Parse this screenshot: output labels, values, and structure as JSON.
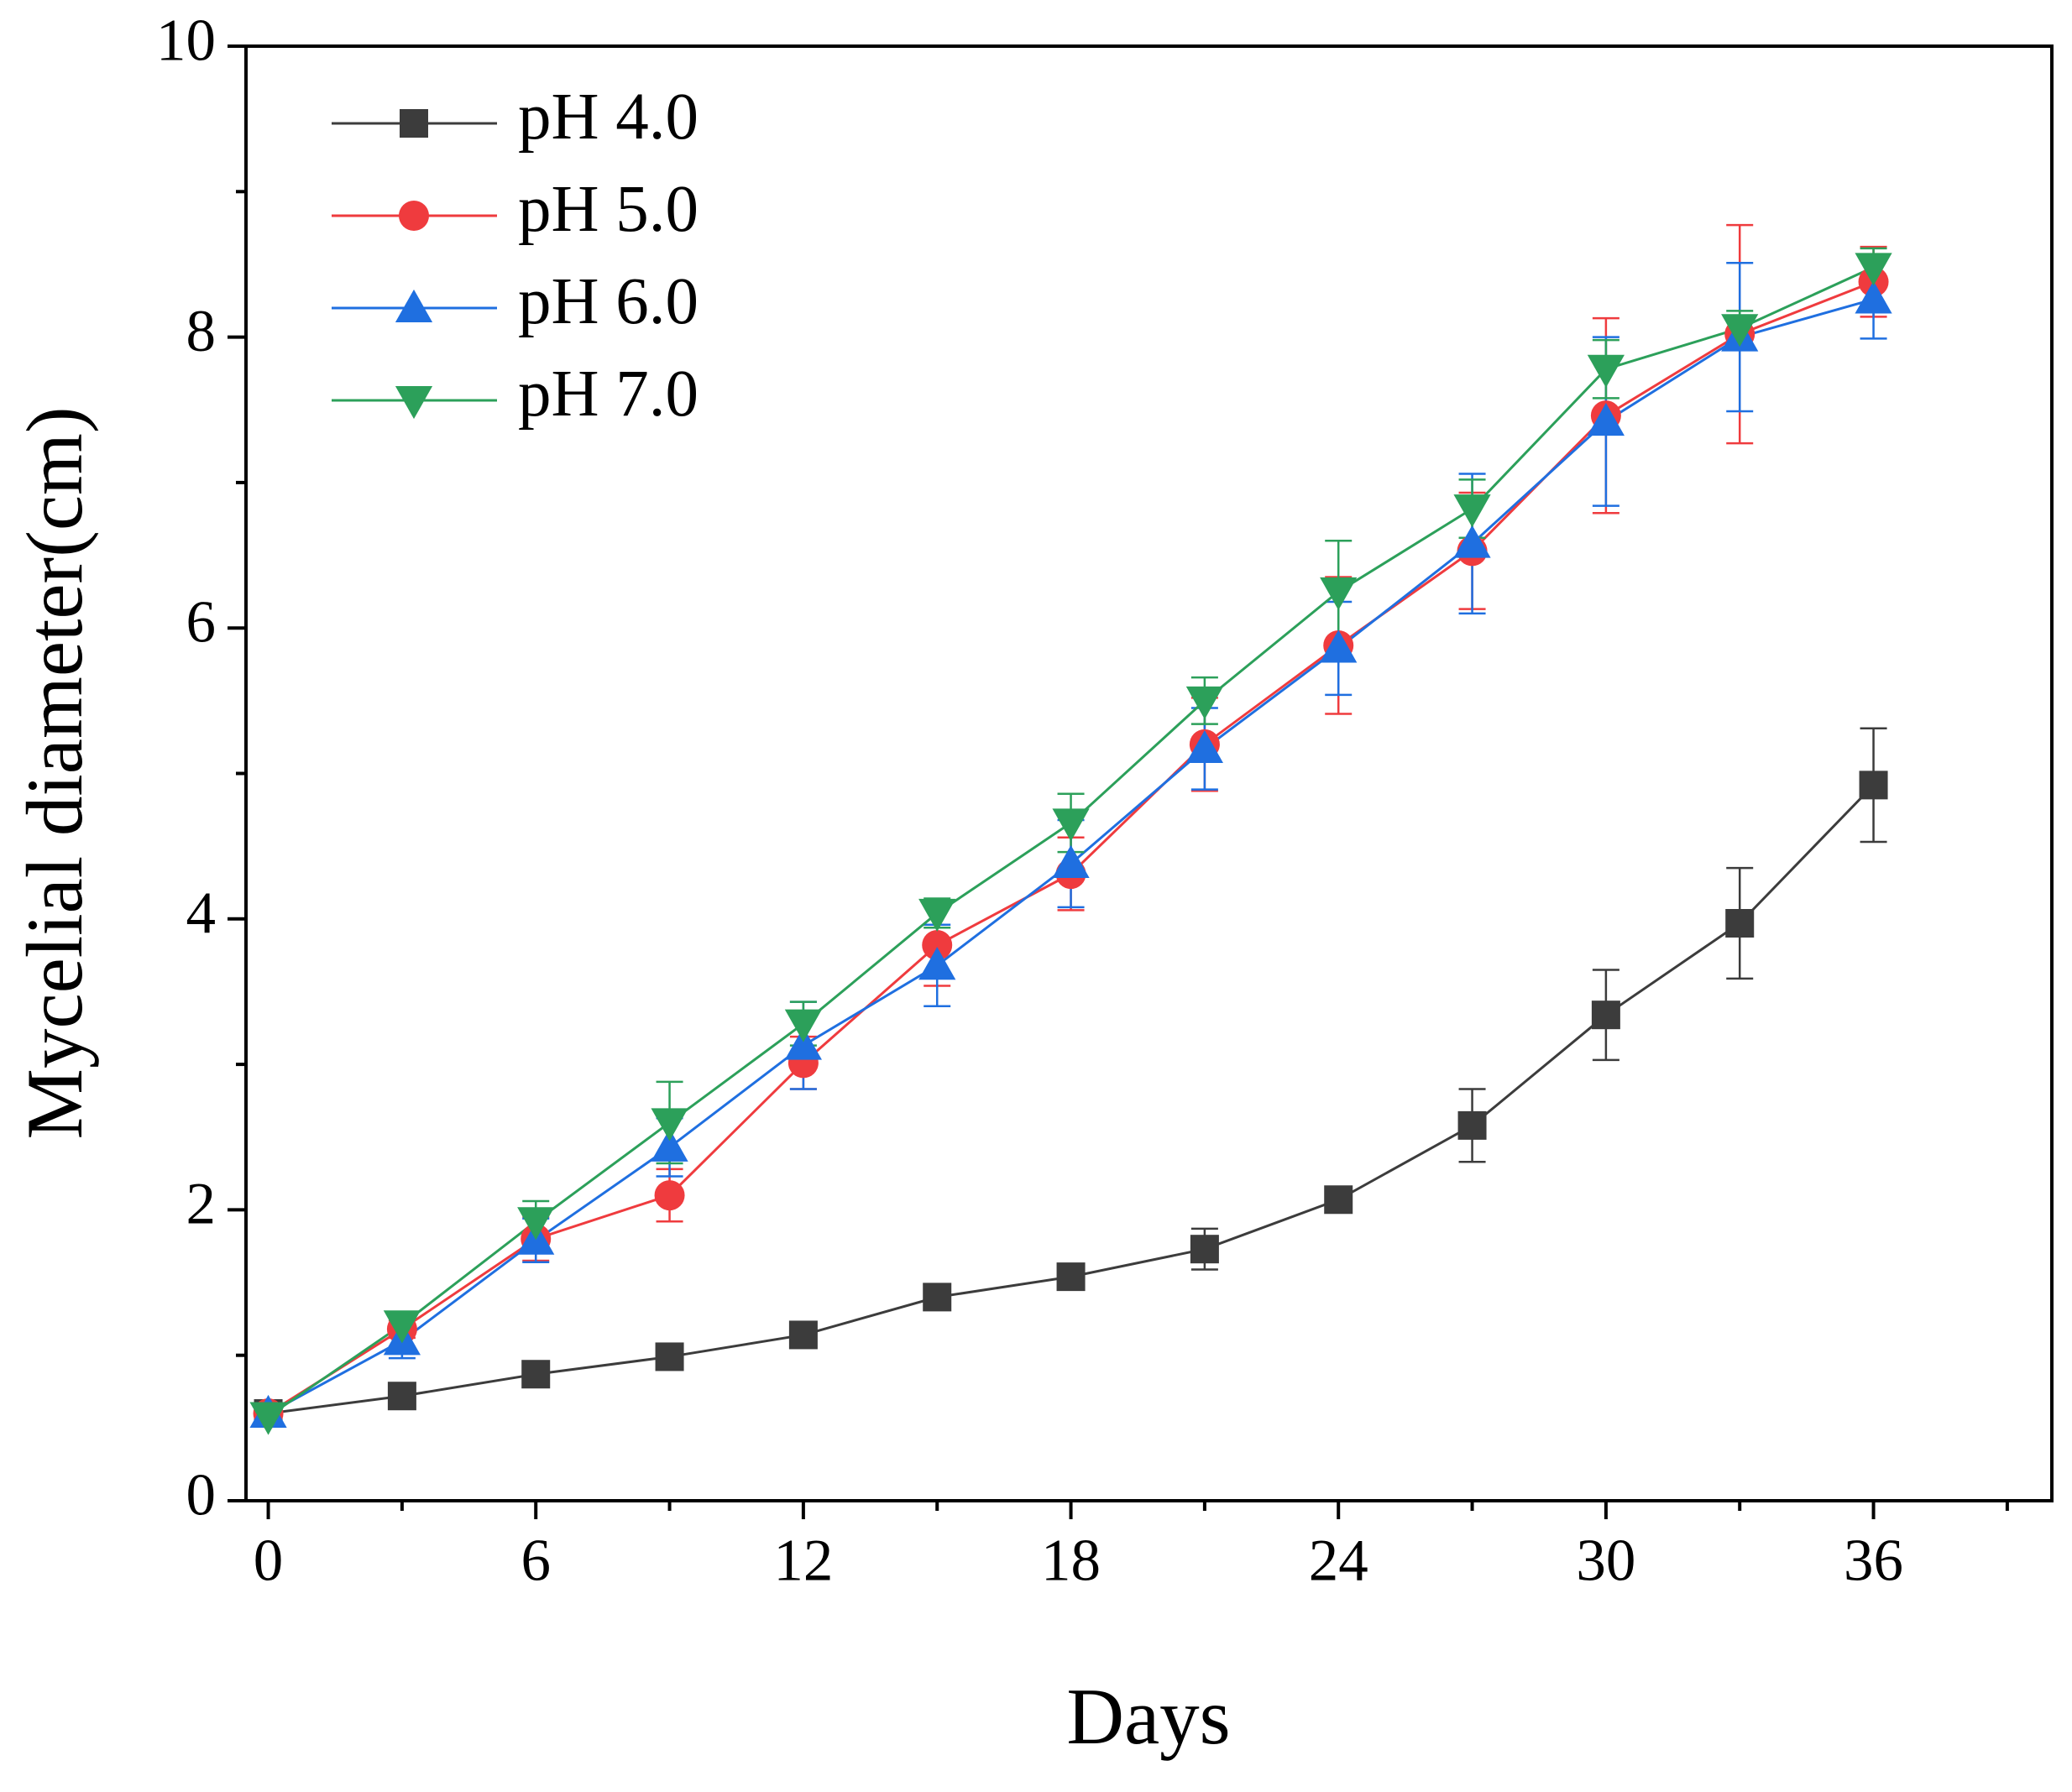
{
  "chart_data": {
    "type": "line",
    "x_label": "Days",
    "y_label": "Mycelial diameter(cm)",
    "x": [
      0,
      3,
      6,
      9,
      12,
      15,
      18,
      21,
      24,
      27,
      30,
      33,
      36
    ],
    "series": [
      {
        "name": "pH 4.0",
        "color": "#3c3c3c",
        "marker": "square",
        "values": [
          0.6,
          0.72,
          0.87,
          0.99,
          1.14,
          1.4,
          1.54,
          1.73,
          2.07,
          2.58,
          3.34,
          3.97,
          4.92
        ],
        "errors": [
          0.02,
          0.03,
          0.03,
          0.03,
          0.04,
          0.04,
          0.05,
          0.14,
          0.06,
          0.25,
          0.31,
          0.38,
          0.39
        ]
      },
      {
        "name": "pH 5.0",
        "color": "#ef3b3e",
        "marker": "circle",
        "values": [
          0.6,
          1.18,
          1.8,
          2.1,
          3.01,
          3.82,
          4.31,
          5.2,
          5.88,
          6.53,
          7.46,
          8.02,
          8.38
        ],
        "errors": [
          0.05,
          0.06,
          0.15,
          0.18,
          0.18,
          0.28,
          0.25,
          0.32,
          0.47,
          0.4,
          0.67,
          0.75,
          0.24
        ]
      },
      {
        "name": "pH 6.0",
        "color": "#1f6fe0",
        "marker": "triangle-up",
        "values": [
          0.6,
          1.1,
          1.79,
          2.43,
          3.13,
          3.68,
          4.38,
          5.17,
          5.86,
          6.58,
          7.42,
          8.0,
          8.26
        ],
        "errors": [
          0.03,
          0.12,
          0.15,
          0.2,
          0.3,
          0.28,
          0.3,
          0.28,
          0.32,
          0.48,
          0.58,
          0.51,
          0.27
        ]
      },
      {
        "name": "pH 7.0",
        "color": "#2ca05a",
        "marker": "triangle-down",
        "values": [
          0.58,
          1.21,
          1.92,
          2.6,
          3.28,
          4.04,
          4.66,
          5.5,
          6.25,
          6.82,
          7.78,
          8.06,
          8.48
        ],
        "errors": [
          0.03,
          0.05,
          0.14,
          0.28,
          0.15,
          0.1,
          0.2,
          0.16,
          0.35,
          0.2,
          0.2,
          0.12,
          0.13
        ]
      }
    ],
    "xlim": [
      -0.5,
      40
    ],
    "ylim": [
      0,
      10
    ],
    "xticks": [
      0,
      6,
      12,
      18,
      24,
      30,
      36
    ],
    "yticks": [
      0,
      2,
      4,
      6,
      8,
      10
    ],
    "xminorticks": [
      3,
      9,
      15,
      21,
      27,
      33,
      39
    ],
    "yminorticks": [
      1,
      3,
      5,
      7,
      9
    ],
    "legend": "upper left",
    "grid": false
  }
}
